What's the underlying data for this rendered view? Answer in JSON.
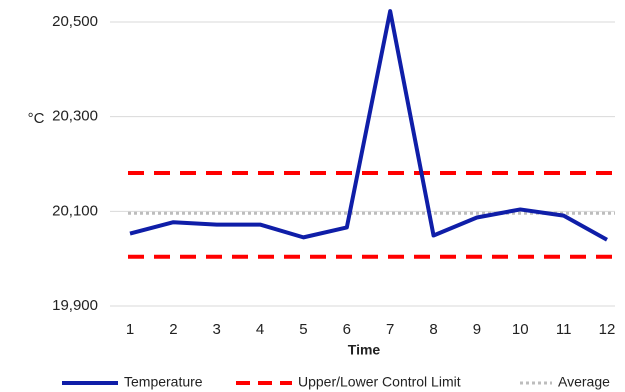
{
  "chart_data": {
    "type": "line",
    "x_label": "Time",
    "y_label": "°C",
    "categories": [
      "1",
      "2",
      "3",
      "4",
      "5",
      "6",
      "7",
      "8",
      "9",
      "10",
      "11",
      "12"
    ],
    "series": [
      {
        "name": "Temperature",
        "color": "#0f1ea8",
        "values": [
          20053,
          20077,
          20072,
          20072,
          20045,
          20066,
          20523,
          20049,
          20087,
          20104,
          20091,
          20040
        ]
      }
    ],
    "control_limits": {
      "name": "Upper/Lower Control Limit",
      "color": "#ff0000",
      "upper": 20181,
      "lower": 20004
    },
    "average": {
      "name": "Average",
      "color": "#bdbdbd",
      "value": 20096
    },
    "ylim": [
      19900,
      20500
    ],
    "yticks": [
      {
        "value": 19900,
        "label": "19,900"
      },
      {
        "value": 20100,
        "label": "20,100"
      },
      {
        "value": 20300,
        "label": "20,300"
      },
      {
        "value": 20500,
        "label": "20,500"
      }
    ],
    "grid": true
  }
}
